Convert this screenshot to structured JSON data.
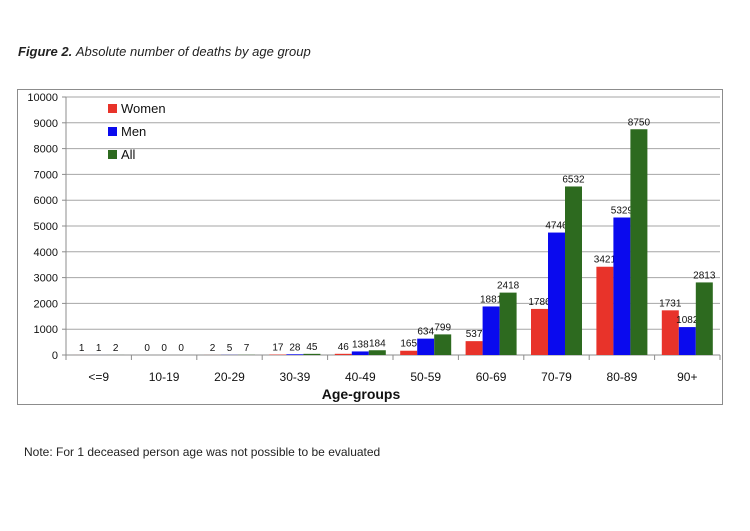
{
  "figure": {
    "label": "Figure 2.",
    "title": "Absolute number of deaths by age group"
  },
  "note": "Note: For 1 deceased person age was not possible to be evaluated",
  "colors": {
    "women": "#e8332a",
    "men": "#0a0aee",
    "all": "#2d6a1f"
  },
  "chart_data": {
    "type": "bar",
    "title": "Absolute number of deaths by age group",
    "xlabel": "Age-groups",
    "ylabel": "",
    "ylim": [
      0,
      10000
    ],
    "yticks": [
      0,
      1000,
      2000,
      3000,
      4000,
      5000,
      6000,
      7000,
      8000,
      9000,
      10000
    ],
    "grid": true,
    "legend": "top-left",
    "categories": [
      "<=9",
      "10-19",
      "20-29",
      "30-39",
      "40-49",
      "50-59",
      "60-69",
      "70-79",
      "80-89",
      "90+"
    ],
    "series": [
      {
        "name": "Women",
        "values": [
          1,
          0,
          2,
          17,
          46,
          165,
          537,
          1786,
          3421,
          1731
        ]
      },
      {
        "name": "Men",
        "values": [
          1,
          0,
          5,
          28,
          138,
          634,
          1881,
          4746,
          5329,
          1082
        ]
      },
      {
        "name": "All",
        "values": [
          2,
          0,
          7,
          45,
          184,
          799,
          2418,
          6532,
          8750,
          2813
        ]
      }
    ]
  }
}
